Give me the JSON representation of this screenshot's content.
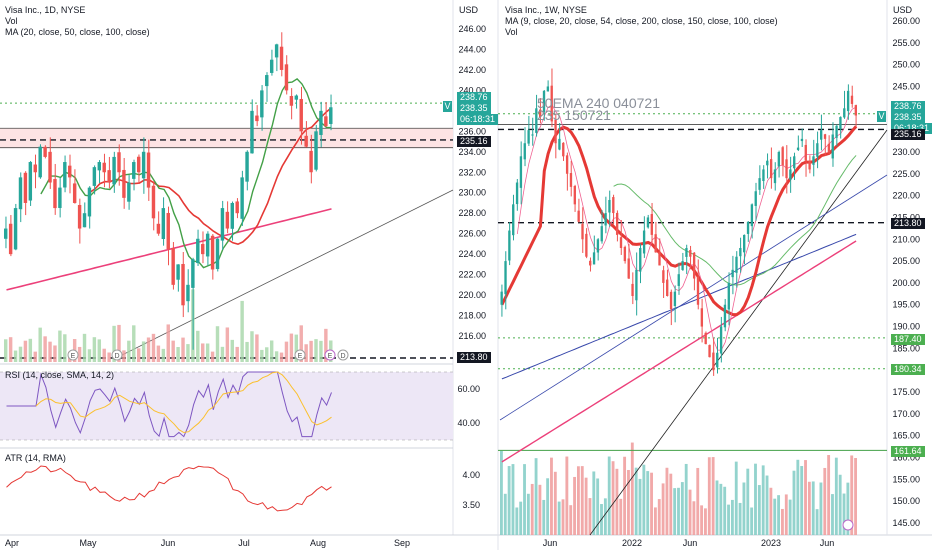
{
  "left_chart": {
    "header": {
      "title": "Visa Inc., 1D, NYSE",
      "vol": "Vol",
      "ma": "MA (20, close, 50, close, 100, close)"
    },
    "currency": "USD",
    "price_axis_labels": [
      "246.00",
      "244.00",
      "242.00",
      "240.00",
      "238.00",
      "236.00",
      "234.00",
      "232.00",
      "230.00",
      "228.00",
      "226.00",
      "224.00",
      "222.00",
      "220.00",
      "218.00",
      "216.00"
    ],
    "price_tags": {
      "last": "238.76",
      "current": "238.35",
      "countdown": "06:18:31",
      "support1": "235.16",
      "support2": "213.80",
      "v_marker": "V"
    },
    "time_labels": [
      "Apr",
      "May",
      "Jun",
      "Jul",
      "Aug",
      "Sep"
    ],
    "events": [
      "E",
      "D",
      "E",
      "E",
      "D"
    ],
    "rsi": {
      "title": "RSI (14, close, SMA, 14, 2)",
      "axis_labels": [
        "60.00",
        "40.00"
      ]
    },
    "atr": {
      "title": "ATR (14, RMA)",
      "axis_labels": [
        "4.00",
        "3.50"
      ]
    }
  },
  "right_chart": {
    "header": {
      "title": "Visa Inc., 1W, NYSE",
      "ma": "MA (9, close, 20, close, 54, close, 200, close, 150, close, 100, close)",
      "vol": "Vol"
    },
    "currency": "USD",
    "price_axis_labels": [
      "260.00",
      "255.00",
      "250.00",
      "245.00",
      "240.00",
      "235.00",
      "230.00",
      "225.00",
      "220.00",
      "215.00",
      "210.00",
      "205.00",
      "200.00",
      "195.00",
      "190.00",
      "185.00",
      "180.00",
      "175.00",
      "170.00",
      "165.00",
      "160.00",
      "155.00",
      "150.00",
      "145.00"
    ],
    "price_tags": {
      "last": "238.76",
      "current": "238.35",
      "countdown": "06:18:31",
      "support1": "235.16",
      "level2": "213.80",
      "level3": "187.40",
      "level4": "180.34",
      "level5": "161.64",
      "v_marker": "V"
    },
    "annotation": [
      "50EMA 240 040721",
      "235 150721"
    ],
    "time_labels": [
      "Jun",
      "2022",
      "Jun",
      "2023",
      "Jun"
    ]
  },
  "colors": {
    "up": "#26a69a",
    "down": "#ef5350",
    "ma_green": "#43a047",
    "ma_red": "#e53935",
    "ma_magenta": "#ec407a",
    "rsi_line": "#7e57c2",
    "rsi_band": "#ede7f6",
    "atr_line": "#e53935",
    "support_band": "#fde4e4",
    "dotted_green": "#4caf50"
  },
  "chart_data": [
    {
      "type": "candlestick",
      "title": "Visa Inc., 1D, NYSE",
      "ylim": [
        212,
        247
      ],
      "x_labels": [
        "Apr",
        "May",
        "Jun",
        "Jul",
        "Aug",
        "Sep"
      ],
      "indicators": [
        "MA 20",
        "MA 50",
        "MA 100",
        "RSI 14",
        "ATR 14"
      ],
      "horizontal_levels": [
        235.16,
        213.8,
        238.76
      ],
      "close_series": [
        226.5,
        224.0,
        228.5,
        231.5,
        229.0,
        233.0,
        232.0,
        234.5,
        233.5,
        231.0,
        228.5,
        230.5,
        233.0,
        231.5,
        229.0,
        226.5,
        228.0,
        230.5,
        232.5,
        233.0,
        232.0,
        231.0,
        233.5,
        232.0,
        229.5,
        231.0,
        233.0,
        232.0,
        234.0,
        230.5,
        227.5,
        226.0,
        228.5,
        224.5,
        221.0,
        223.0,
        219.0,
        221.0,
        223.5,
        225.5,
        224.0,
        226.0,
        222.5,
        225.5,
        228.5,
        226.5,
        229.0,
        228.0,
        231.5,
        234.0,
        238.0,
        237.0,
        240.0,
        241.5,
        243.0,
        244.5,
        242.0,
        240.0,
        238.5,
        239.5,
        236.0,
        234.5,
        232.0,
        236.0,
        238.0,
        236.5,
        238.35
      ]
    },
    {
      "type": "candlestick",
      "title": "Visa Inc., 1W, NYSE",
      "ylim": [
        144,
        261
      ],
      "x_labels": [
        "Jun",
        "2022",
        "Jun",
        "2023",
        "Jun"
      ],
      "indicators": [
        "MA 9",
        "MA 20",
        "MA 54",
        "MA 200",
        "MA 150",
        "MA 100"
      ],
      "horizontal_levels": [
        235.16,
        213.8,
        187.4,
        180.34,
        161.64,
        238.76
      ],
      "close_series": [
        198.0,
        205.0,
        212.0,
        218.0,
        223.0,
        229.0,
        232.0,
        235.0,
        234.0,
        240.0,
        238.0,
        244.0,
        245.0,
        237.0,
        232.0,
        233.0,
        229.0,
        225.0,
        222.0,
        218.0,
        214.0,
        210.0,
        206.0,
        204.0,
        207.0,
        210.0,
        213.0,
        216.0,
        219.0,
        216.0,
        211.0,
        208.0,
        205.0,
        201.0,
        197.0,
        203.0,
        208.0,
        212.0,
        215.0,
        211.0,
        207.0,
        204.0,
        200.0,
        197.0,
        194.0,
        198.0,
        202.0,
        205.0,
        208.0,
        206.0,
        201.0,
        195.0,
        190.0,
        186.0,
        183.0,
        180.0,
        184.0,
        190.0,
        195.0,
        200.0,
        203.0,
        206.0,
        208.0,
        211.0,
        214.0,
        218.0,
        221.0,
        224.0,
        226.0,
        228.0,
        224.0,
        226.0,
        230.0,
        227.0,
        224.0,
        226.0,
        229.0,
        231.0,
        233.0,
        228.0,
        226.0,
        229.0,
        232.0,
        235.0,
        233.0,
        230.0,
        234.0,
        236.0,
        238.0,
        240.0,
        244.0,
        241.0,
        238.35
      ]
    }
  ]
}
